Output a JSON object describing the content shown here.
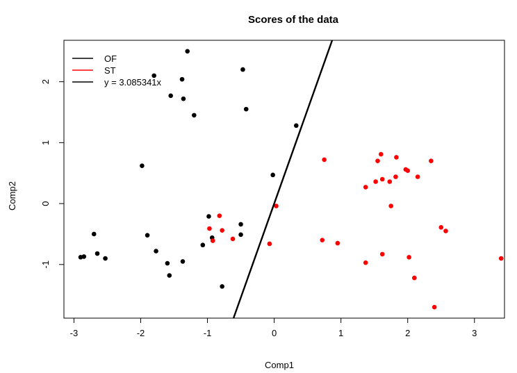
{
  "chart_data": {
    "type": "scatter",
    "title": "Scores of the data",
    "xlabel": "Comp1",
    "ylabel": "Comp2",
    "xlim": [
      -3.15,
      3.45
    ],
    "ylim": [
      -1.88,
      2.68
    ],
    "xticks": [
      -3,
      -2,
      -1,
      0,
      1,
      2,
      3
    ],
    "yticks": [
      -1,
      0,
      1,
      2
    ],
    "grid": false,
    "legend_position": "top-left",
    "legend": [
      {
        "label": "OF",
        "color": "#000000"
      },
      {
        "label": "ST",
        "color": "#ff0000"
      },
      {
        "label": "y = 3.085341x",
        "color": "#000000"
      }
    ],
    "line": {
      "slope": 3.085341,
      "intercept": 0,
      "color": "#000000"
    },
    "series": [
      {
        "name": "OF",
        "color": "#000000",
        "points": [
          [
            -1.3,
            2.5
          ],
          [
            -0.47,
            2.2
          ],
          [
            -1.8,
            2.1
          ],
          [
            -1.38,
            2.04
          ],
          [
            -1.55,
            1.77
          ],
          [
            -1.36,
            1.72
          ],
          [
            -0.42,
            1.55
          ],
          [
            -1.2,
            1.45
          ],
          [
            0.33,
            1.28
          ],
          [
            -1.98,
            0.62
          ],
          [
            -0.02,
            0.47
          ],
          [
            -0.98,
            -0.21
          ],
          [
            -0.5,
            -0.34
          ],
          [
            -1.9,
            -0.52
          ],
          [
            -0.5,
            -0.51
          ],
          [
            -0.93,
            -0.56
          ],
          [
            -2.7,
            -0.5
          ],
          [
            -1.07,
            -0.68
          ],
          [
            -1.77,
            -0.78
          ],
          [
            -2.65,
            -0.82
          ],
          [
            -2.9,
            -0.88
          ],
          [
            -2.85,
            -0.87
          ],
          [
            -2.53,
            -0.9
          ],
          [
            -1.37,
            -0.95
          ],
          [
            -1.6,
            -0.98
          ],
          [
            -1.57,
            -1.18
          ],
          [
            -0.78,
            -1.36
          ]
        ]
      },
      {
        "name": "ST",
        "color": "#ff0000",
        "points": [
          [
            0.75,
            0.72
          ],
          [
            1.6,
            0.81
          ],
          [
            1.55,
            0.7
          ],
          [
            1.83,
            0.76
          ],
          [
            1.97,
            0.56
          ],
          [
            2.0,
            0.54
          ],
          [
            2.35,
            0.7
          ],
          [
            1.82,
            0.44
          ],
          [
            2.15,
            0.44
          ],
          [
            1.62,
            0.4
          ],
          [
            1.52,
            0.36
          ],
          [
            1.73,
            0.36
          ],
          [
            1.37,
            0.27
          ],
          [
            0.03,
            -0.04
          ],
          [
            1.75,
            -0.04
          ],
          [
            -0.82,
            -0.2
          ],
          [
            -0.97,
            -0.41
          ],
          [
            -0.78,
            -0.44
          ],
          [
            2.5,
            -0.39
          ],
          [
            2.57,
            -0.45
          ],
          [
            -0.62,
            -0.58
          ],
          [
            -0.92,
            -0.61
          ],
          [
            0.72,
            -0.6
          ],
          [
            0.95,
            -0.65
          ],
          [
            -0.07,
            -0.66
          ],
          [
            1.62,
            -0.83
          ],
          [
            2.02,
            -0.88
          ],
          [
            1.37,
            -0.97
          ],
          [
            3.4,
            -0.9
          ],
          [
            2.1,
            -1.22
          ],
          [
            2.4,
            -1.7
          ]
        ]
      }
    ]
  }
}
